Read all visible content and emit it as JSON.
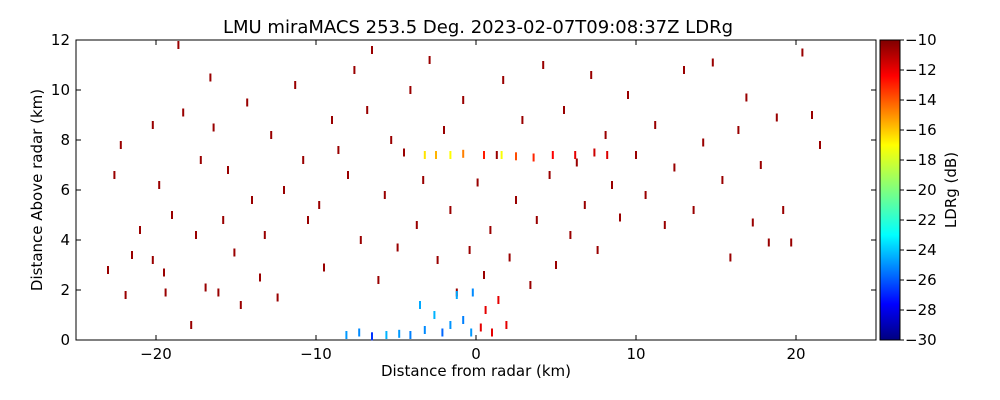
{
  "chart_data": {
    "type": "scatter",
    "title": "LMU miraMACS 253.5 Deg. 2023-02-07T09:08:37Z  LDRg",
    "xlabel": "Distance from radar (km)",
    "ylabel": "Distance Above radar  (km)",
    "xlim": [
      -25,
      25
    ],
    "ylim": [
      0,
      12
    ],
    "x_ticks": [
      -20,
      -10,
      0,
      10,
      20
    ],
    "x_tick_labels": [
      "−20",
      "−10",
      "0",
      "10",
      "20"
    ],
    "y_ticks": [
      0,
      2,
      4,
      6,
      8,
      10,
      12
    ],
    "y_tick_labels": [
      "0",
      "2",
      "4",
      "6",
      "8",
      "10",
      "12"
    ],
    "grid": false,
    "colorbar": {
      "label": "LDRg (dB)",
      "colormap": "jet",
      "range": [
        -30,
        -10
      ],
      "ticks": [
        -30,
        -28,
        -26,
        -24,
        -22,
        -20,
        -18,
        -16,
        -14,
        -12,
        -10
      ],
      "tick_labels": [
        "−30",
        "−28",
        "−26",
        "−24",
        "−22",
        "−20",
        "−18",
        "−16",
        "−14",
        "−12",
        "−10"
      ]
    },
    "points": [
      [
        -23,
        2.8,
        -10.5
      ],
      [
        -22.6,
        6.6,
        -10.5
      ],
      [
        -22.2,
        7.8,
        -10.5
      ],
      [
        -21.9,
        1.8,
        -10.5
      ],
      [
        -21.5,
        3.4,
        -10.5
      ],
      [
        -21.0,
        4.4,
        -10.5
      ],
      [
        -20.2,
        8.6,
        -10.5
      ],
      [
        -20.2,
        3.2,
        -10.5
      ],
      [
        -19.8,
        6.2,
        -10.5
      ],
      [
        -19.5,
        2.7,
        -10.5
      ],
      [
        -19.4,
        1.9,
        -10.5
      ],
      [
        -19.0,
        5.0,
        -10.5
      ],
      [
        -18.6,
        11.8,
        -10.5
      ],
      [
        -18.3,
        9.1,
        -10.5
      ],
      [
        -17.8,
        0.6,
        -10.5
      ],
      [
        -17.5,
        4.2,
        -10.5
      ],
      [
        -17.2,
        7.2,
        -10.5
      ],
      [
        -16.9,
        2.1,
        -10.5
      ],
      [
        -16.6,
        10.5,
        -10.5
      ],
      [
        -16.4,
        8.5,
        -10.5
      ],
      [
        -16.1,
        1.9,
        -10.5
      ],
      [
        -15.8,
        4.8,
        -10.5
      ],
      [
        -15.5,
        6.8,
        -10.5
      ],
      [
        -15.1,
        3.5,
        -10.5
      ],
      [
        -14.7,
        1.4,
        -10.5
      ],
      [
        -14.3,
        9.5,
        -10.5
      ],
      [
        -14.0,
        5.6,
        -10.5
      ],
      [
        -13.5,
        2.5,
        -10.5
      ],
      [
        -13.2,
        4.2,
        -10.5
      ],
      [
        -12.8,
        8.2,
        -10.5
      ],
      [
        -12.4,
        1.7,
        -10.5
      ],
      [
        -12.0,
        6.0,
        -10.5
      ],
      [
        -11.3,
        10.2,
        -10.5
      ],
      [
        -10.8,
        7.2,
        -10.5
      ],
      [
        -10.5,
        4.8,
        -10.5
      ],
      [
        -9.8,
        5.4,
        -10.5
      ],
      [
        -9.5,
        2.9,
        -10.5
      ],
      [
        -9.0,
        8.8,
        -10.5
      ],
      [
        -8.6,
        7.6,
        -10.5
      ],
      [
        -8.0,
        6.6,
        -10.5
      ],
      [
        -7.6,
        10.8,
        -10.5
      ],
      [
        -7.2,
        4.0,
        -10.5
      ],
      [
        -6.8,
        9.2,
        -10.5
      ],
      [
        -6.5,
        11.6,
        -10.5
      ],
      [
        -6.1,
        2.4,
        -10.5
      ],
      [
        -5.7,
        5.8,
        -10.5
      ],
      [
        -5.3,
        8.0,
        -10.5
      ],
      [
        -4.9,
        3.7,
        -10.5
      ],
      [
        -4.5,
        7.5,
        -10.5
      ],
      [
        -4.1,
        10.0,
        -10.5
      ],
      [
        -3.7,
        4.6,
        -10.5
      ],
      [
        -3.3,
        6.4,
        -10.5
      ],
      [
        -2.9,
        11.2,
        -10.5
      ],
      [
        -2.4,
        3.2,
        -10.5
      ],
      [
        -2.0,
        8.4,
        -10.5
      ],
      [
        -1.6,
        5.2,
        -10.5
      ],
      [
        -1.2,
        1.9,
        -10.5
      ],
      [
        -0.8,
        9.6,
        -10.5
      ],
      [
        -0.4,
        3.6,
        -10.5
      ],
      [
        0.1,
        6.3,
        -10.5
      ],
      [
        0.5,
        2.6,
        -10.5
      ],
      [
        0.9,
        4.4,
        -10.5
      ],
      [
        1.3,
        7.4,
        -10.5
      ],
      [
        1.7,
        10.4,
        -10.5
      ],
      [
        2.1,
        3.3,
        -10.5
      ],
      [
        2.5,
        5.6,
        -10.5
      ],
      [
        2.9,
        8.8,
        -10.5
      ],
      [
        3.4,
        2.2,
        -10.5
      ],
      [
        3.8,
        4.8,
        -10.5
      ],
      [
        4.2,
        11.0,
        -10.5
      ],
      [
        4.6,
        6.6,
        -10.5
      ],
      [
        5.0,
        3.0,
        -10.5
      ],
      [
        5.5,
        9.2,
        -10.5
      ],
      [
        5.9,
        4.2,
        -10.5
      ],
      [
        6.3,
        7.1,
        -10.5
      ],
      [
        6.8,
        5.4,
        -10.5
      ],
      [
        7.2,
        10.6,
        -10.5
      ],
      [
        7.6,
        3.6,
        -10.5
      ],
      [
        8.1,
        8.2,
        -10.5
      ],
      [
        8.5,
        6.2,
        -10.5
      ],
      [
        9.0,
        4.9,
        -10.5
      ],
      [
        9.5,
        9.8,
        -10.5
      ],
      [
        10.0,
        7.4,
        -10.5
      ],
      [
        10.6,
        5.8,
        -10.5
      ],
      [
        11.2,
        8.6,
        -10.5
      ],
      [
        11.8,
        4.6,
        -10.5
      ],
      [
        12.4,
        6.9,
        -10.5
      ],
      [
        13.0,
        10.8,
        -10.5
      ],
      [
        13.6,
        5.2,
        -10.5
      ],
      [
        14.2,
        7.9,
        -10.5
      ],
      [
        14.8,
        11.1,
        -10.5
      ],
      [
        15.4,
        6.4,
        -10.5
      ],
      [
        15.9,
        3.3,
        -10.5
      ],
      [
        16.4,
        8.4,
        -10.5
      ],
      [
        16.9,
        9.7,
        -10.5
      ],
      [
        17.3,
        4.7,
        -10.5
      ],
      [
        17.8,
        7.0,
        -10.5
      ],
      [
        18.3,
        3.9,
        -10.5
      ],
      [
        18.8,
        8.9,
        -10.5
      ],
      [
        19.2,
        5.2,
        -10.5
      ],
      [
        19.7,
        3.9,
        -10.5
      ],
      [
        20.4,
        11.5,
        -10.5
      ],
      [
        21.0,
        9.0,
        -10.5
      ],
      [
        21.5,
        7.8,
        -10.5
      ],
      [
        -8.1,
        0.2,
        -24.5
      ],
      [
        -7.3,
        0.3,
        -24.8
      ],
      [
        -6.5,
        0.15,
        -26.5
      ],
      [
        -5.6,
        0.2,
        -24.0
      ],
      [
        -4.8,
        0.25,
        -24.5
      ],
      [
        -4.1,
        0.2,
        -25.0
      ],
      [
        -3.5,
        1.4,
        -24.2
      ],
      [
        -3.2,
        0.4,
        -24.8
      ],
      [
        -2.6,
        1.0,
        -24.0
      ],
      [
        -2.1,
        0.3,
        -25.5
      ],
      [
        -1.6,
        0.6,
        -24.6
      ],
      [
        -1.2,
        1.8,
        -24.2
      ],
      [
        -0.8,
        0.8,
        -25.0
      ],
      [
        -0.3,
        0.3,
        -24.5
      ],
      [
        -0.2,
        1.9,
        -24.8
      ],
      [
        0.3,
        0.5,
        -12.0
      ],
      [
        0.6,
        1.2,
        -12.0
      ],
      [
        1.0,
        0.3,
        -12.0
      ],
      [
        1.4,
        1.6,
        -12.0
      ],
      [
        1.9,
        0.6,
        -12.0
      ],
      [
        -3.2,
        7.4,
        -17.0
      ],
      [
        -2.5,
        7.4,
        -16.0
      ],
      [
        -1.6,
        7.4,
        -17.5
      ],
      [
        -0.8,
        7.45,
        -15.0
      ],
      [
        0.5,
        7.4,
        -13.0
      ],
      [
        1.6,
        7.4,
        -17.6
      ],
      [
        2.5,
        7.35,
        -14.0
      ],
      [
        3.6,
        7.3,
        -13.2
      ],
      [
        4.8,
        7.4,
        -12.5
      ],
      [
        6.2,
        7.4,
        -12.0
      ],
      [
        7.4,
        7.5,
        -11.5
      ],
      [
        8.2,
        7.4,
        -11.8
      ]
    ]
  }
}
